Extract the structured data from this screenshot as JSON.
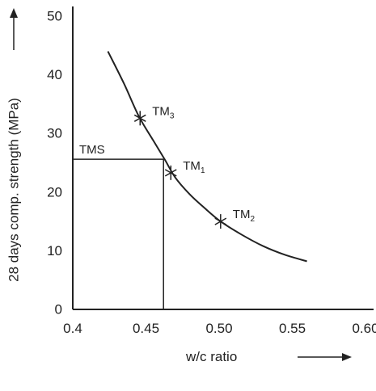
{
  "chart_data": {
    "type": "line",
    "title": "",
    "xlabel": "w/c ratio",
    "ylabel": "28 days comp. strength (MPa)",
    "xlim": [
      0.4,
      0.6
    ],
    "ylim": [
      0,
      50
    ],
    "x_ticks": [
      "0.4",
      "0.45",
      "0.50",
      "0.55",
      "0.60"
    ],
    "y_ticks": [
      "0",
      "10",
      "20",
      "30",
      "40",
      "50"
    ],
    "grid": false,
    "legend": "none",
    "series": [
      {
        "x": [
          0.424,
          0.435,
          0.445,
          0.455,
          0.463,
          0.47,
          0.48,
          0.49,
          0.501,
          0.515,
          0.53,
          0.545,
          0.56
        ],
        "y": [
          44.0,
          38.5,
          33.0,
          28.8,
          25.5,
          22.5,
          19.6,
          17.3,
          15.0,
          12.8,
          10.8,
          9.3,
          8.2
        ]
      }
    ],
    "markers": [
      {
        "base": "TM",
        "sub": "3",
        "x": 0.446,
        "y": 32.6
      },
      {
        "base": "TM",
        "sub": "1",
        "x": 0.467,
        "y": 23.3
      },
      {
        "base": "TM",
        "sub": "2",
        "x": 0.501,
        "y": 15.0
      }
    ],
    "reference": {
      "label": "TMS",
      "x": 0.462,
      "y": 25.6
    },
    "colors": {
      "line": "#222222",
      "axis": "#222222"
    }
  }
}
